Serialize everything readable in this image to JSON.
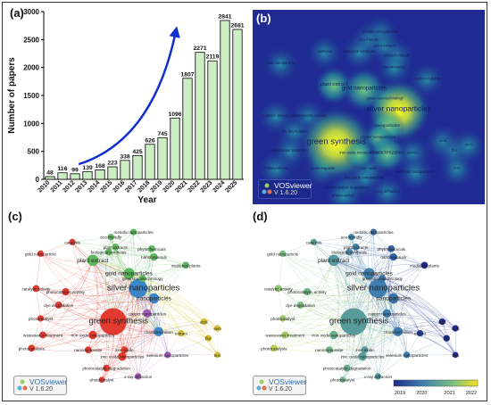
{
  "panels": {
    "a": "(a)",
    "b": "(b)",
    "c": "(c)",
    "d": "(d)"
  },
  "vosviewer": {
    "name": "VOSviewer",
    "version": "V 1.6.20"
  },
  "chart_data": [
    {
      "type": "bar",
      "xlabel": "Year",
      "ylabel": "Number of papers",
      "ylim": [
        0,
        3000
      ],
      "yticks": [
        0,
        500,
        1000,
        1500,
        2000,
        2500,
        3000
      ],
      "categories": [
        "2010",
        "2011",
        "2012",
        "2013",
        "2014",
        "2015",
        "2016",
        "2017",
        "2018",
        "2019",
        "2020",
        "2021",
        "2022",
        "2023",
        "2024",
        "2025"
      ],
      "values": [
        48,
        116,
        99,
        139,
        168,
        223,
        338,
        425,
        626,
        745,
        1096,
        1807,
        2271,
        2119,
        2841,
        2681
      ],
      "bar_color": "#cdeec4",
      "trend_arrow_color": "#1030d0"
    },
    {
      "type": "heatmap",
      "keywords": [
        {
          "label": "metallic nanoparticles",
          "x": 0.55,
          "y": 0.88
        },
        {
          "label": "eco-friendly",
          "x": 0.5,
          "y": 0.84
        },
        {
          "label": "plant extracts",
          "x": 0.57,
          "y": 0.81
        },
        {
          "label": "catalysis",
          "x": 0.31,
          "y": 0.78
        },
        {
          "label": "biological synthesis",
          "x": 0.46,
          "y": 0.78
        },
        {
          "label": "phytochemicals",
          "x": 0.62,
          "y": 0.76
        },
        {
          "label": "gold nanoparticle",
          "x": 0.12,
          "y": 0.72
        },
        {
          "label": "nanomaterials",
          "x": 0.61,
          "y": 0.7
        },
        {
          "label": "medicinal plants",
          "x": 0.75,
          "y": 0.64
        },
        {
          "label": "plant extract",
          "x": 0.35,
          "y": 0.61
        },
        {
          "label": "gold nanoparticles",
          "x": 0.48,
          "y": 0.59
        },
        {
          "label": "green nanotechnology",
          "x": 0.57,
          "y": 0.54
        },
        {
          "label": "silver nanoparticles",
          "x": 0.63,
          "y": 0.48
        },
        {
          "label": "catalytic activity",
          "x": 0.1,
          "y": 0.45
        },
        {
          "label": "photocatalytic activity",
          "x": 0.24,
          "y": 0.45
        },
        {
          "label": "nanoparticles",
          "x": 0.58,
          "y": 0.4
        },
        {
          "label": "dye degradation",
          "x": 0.18,
          "y": 0.37
        },
        {
          "label": "copper nanoparticles",
          "x": 0.54,
          "y": 0.34
        },
        {
          "label": "green synthesis",
          "x": 0.36,
          "y": 0.31
        },
        {
          "label": "iron oxide nanoparticles",
          "x": 0.46,
          "y": 0.26
        },
        {
          "label": "wastewater treatment",
          "x": 0.16,
          "y": 0.27
        },
        {
          "label": "characterization",
          "x": 0.58,
          "y": 0.26
        },
        {
          "label": "extract",
          "x": 0.69,
          "y": 0.26
        },
        {
          "label": "acid",
          "x": 0.82,
          "y": 0.32
        },
        {
          "label": "flor",
          "x": 0.87,
          "y": 0.27
        },
        {
          "label": "sem",
          "x": 0.93,
          "y": 0.3
        },
        {
          "label": "photosynthesis",
          "x": 0.1,
          "y": 0.18
        },
        {
          "label": "nanocomposite",
          "x": 0.3,
          "y": 0.18
        },
        {
          "label": "zinc oxide",
          "x": 0.5,
          "y": 0.18
        },
        {
          "label": "zinc oxide nanoparticles",
          "x": 0.48,
          "y": 0.13
        },
        {
          "label": "selenium nanoparticles",
          "x": 0.7,
          "y": 0.16
        },
        {
          "label": "tem",
          "x": 0.88,
          "y": 0.18
        },
        {
          "label": "photocatalytic degradation",
          "x": 0.41,
          "y": 0.08
        },
        {
          "label": "x-ray diffraction",
          "x": 0.58,
          "y": 0.06
        },
        {
          "label": "photocatalyst",
          "x": 0.39,
          "y": 0.04
        }
      ]
    },
    {
      "type": "network",
      "coloring": "cluster",
      "nodes": [
        {
          "label": "green synthesis",
          "x": 0.44,
          "y": 0.4,
          "weight": 5.0,
          "cluster": "red"
        },
        {
          "label": "silver nanoparticles",
          "x": 0.55,
          "y": 0.6,
          "weight": 3.2,
          "cluster": "blue"
        },
        {
          "label": "gold nanoparticles",
          "x": 0.51,
          "y": 0.69,
          "weight": 1.6,
          "cluster": "green"
        },
        {
          "label": "plant extract",
          "x": 0.35,
          "y": 0.77,
          "weight": 1.6,
          "cluster": "green"
        },
        {
          "label": "nanoparticles",
          "x": 0.62,
          "y": 0.54,
          "weight": 1.4,
          "cluster": "blue"
        },
        {
          "label": "characterization",
          "x": 0.64,
          "y": 0.34,
          "weight": 1.2,
          "cluster": "blue"
        },
        {
          "label": "copper nanoparticles",
          "x": 0.59,
          "y": 0.45,
          "weight": 1.0,
          "cluster": "purple"
        },
        {
          "label": "zinc oxide nanoparticles",
          "x": 0.48,
          "y": 0.19,
          "weight": 1.0,
          "cluster": "red"
        },
        {
          "label": "iron oxide nanoparticles",
          "x": 0.35,
          "y": 0.32,
          "weight": 1.0,
          "cluster": "red"
        },
        {
          "label": "photocatalytic activity",
          "x": 0.23,
          "y": 0.58,
          "weight": 0.8,
          "cluster": "red"
        },
        {
          "label": "catalytic activity",
          "x": 0.1,
          "y": 0.6,
          "weight": 0.7,
          "cluster": "red"
        },
        {
          "label": "dye degradation",
          "x": 0.2,
          "y": 0.5,
          "weight": 0.7,
          "cluster": "red"
        },
        {
          "label": "wastewater treatment",
          "x": 0.13,
          "y": 0.32,
          "weight": 0.7,
          "cluster": "red"
        },
        {
          "label": "photocatalysis",
          "x": 0.08,
          "y": 0.24,
          "weight": 0.7,
          "cluster": "red"
        },
        {
          "label": "photocatalyst",
          "x": 0.12,
          "y": 0.42,
          "weight": 0.6,
          "cluster": "red"
        },
        {
          "label": "nanocomposite",
          "x": 0.33,
          "y": 0.23,
          "weight": 0.7,
          "cluster": "red"
        },
        {
          "label": "photocatalytic degradation",
          "x": 0.41,
          "y": 0.12,
          "weight": 0.7,
          "cluster": "red"
        },
        {
          "label": "zinc oxide",
          "x": 0.49,
          "y": 0.23,
          "weight": 0.7,
          "cluster": "red"
        },
        {
          "label": "x-ray diffraction",
          "x": 0.55,
          "y": 0.07,
          "weight": 0.6,
          "cluster": "purple"
        },
        {
          "label": "photocatalyst",
          "x": 0.39,
          "y": 0.05,
          "weight": 0.5,
          "cluster": "red"
        },
        {
          "label": "selenium nanoparticles",
          "x": 0.68,
          "y": 0.2,
          "weight": 0.6,
          "cluster": "purple"
        },
        {
          "label": "extract",
          "x": 0.74,
          "y": 0.33,
          "weight": 0.6,
          "cluster": "yellow"
        },
        {
          "label": "acid",
          "x": 0.84,
          "y": 0.4,
          "weight": 0.6,
          "cluster": "yellow"
        },
        {
          "label": "sem",
          "x": 0.9,
          "y": 0.36,
          "weight": 0.6,
          "cluster": "yellow"
        },
        {
          "label": "flor",
          "x": 0.86,
          "y": 0.3,
          "weight": 0.6,
          "cluster": "yellow"
        },
        {
          "label": "tem",
          "x": 0.9,
          "y": 0.2,
          "weight": 0.5,
          "cluster": "yellow"
        },
        {
          "label": "green nanotechnology",
          "x": 0.57,
          "y": 0.66,
          "weight": 0.7,
          "cluster": "green"
        },
        {
          "label": "nanomaterials",
          "x": 0.62,
          "y": 0.79,
          "weight": 0.8,
          "cluster": "green"
        },
        {
          "label": "medicinal plants",
          "x": 0.76,
          "y": 0.74,
          "weight": 0.7,
          "cluster": "green"
        },
        {
          "label": "phytochemicals",
          "x": 0.61,
          "y": 0.84,
          "weight": 0.7,
          "cluster": "green"
        },
        {
          "label": "plant extracts",
          "x": 0.45,
          "y": 0.85,
          "weight": 0.7,
          "cluster": "green"
        },
        {
          "label": "biological synthesis",
          "x": 0.42,
          "y": 0.82,
          "weight": 0.7,
          "cluster": "green"
        },
        {
          "label": "eco-friendly",
          "x": 0.43,
          "y": 0.91,
          "weight": 0.6,
          "cluster": "green"
        },
        {
          "label": "metallic nanoparticles",
          "x": 0.53,
          "y": 0.94,
          "weight": 0.6,
          "cluster": "green"
        },
        {
          "label": "catalysis",
          "x": 0.26,
          "y": 0.88,
          "weight": 0.6,
          "cluster": "red"
        },
        {
          "label": "gold nanoparticle",
          "x": 0.12,
          "y": 0.81,
          "weight": 0.6,
          "cluster": "red"
        }
      ]
    },
    {
      "type": "network",
      "coloring": "average publication year",
      "colorbar": {
        "ticks": [
          "2019",
          "2020",
          "2021",
          "2022"
        ],
        "colors": [
          "#1e2b8c",
          "#3e7fb0",
          "#78c080",
          "#f5e21e"
        ]
      }
    }
  ]
}
